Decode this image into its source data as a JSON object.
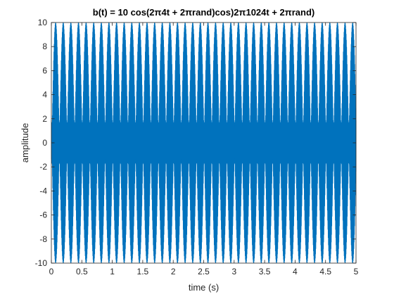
{
  "chart_data": {
    "type": "line",
    "title": "b(t) = 10 cos(2π4t + 2πrand)cos)2π1024t + 2πrand)",
    "xlabel": "time (s)",
    "ylabel": "amplitude",
    "xlim": [
      0,
      5
    ],
    "ylim": [
      -10,
      10
    ],
    "x_ticks": [
      "0",
      "0.5",
      "1",
      "1.5",
      "2",
      "2.5",
      "3",
      "3.5",
      "4",
      "4.5",
      "5"
    ],
    "y_ticks": [
      "-10",
      "-8",
      "-6",
      "-4",
      "-2",
      "0",
      "2",
      "4",
      "6",
      "8",
      "10"
    ],
    "grid": false,
    "series": [
      {
        "color": "#0072BD",
        "amplitude": 10,
        "envelope_frequency_hz": 4,
        "carrier_frequency_hz": 1024
      }
    ]
  }
}
